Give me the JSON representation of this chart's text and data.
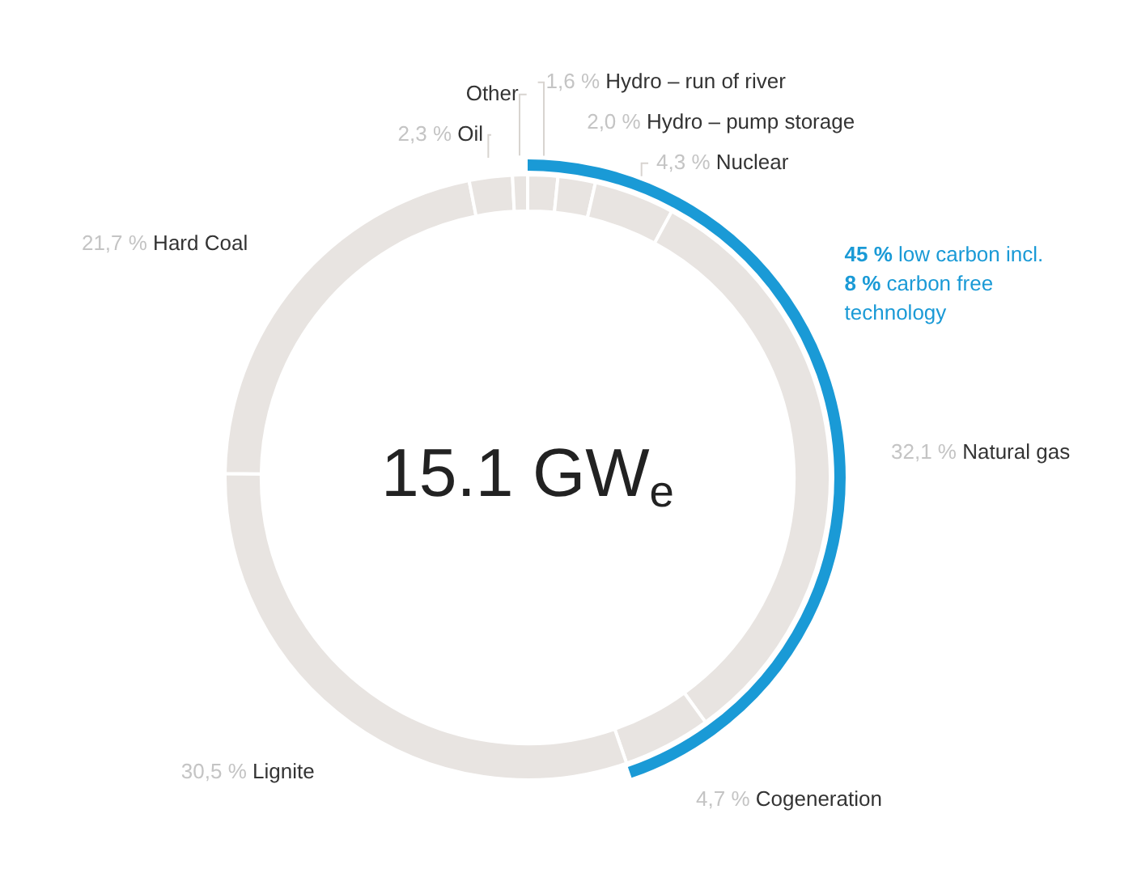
{
  "chart_data": {
    "type": "donut",
    "title": "15.1 GW$_{e}$",
    "categories": [
      "Hydro – run of river",
      "Hydro – pump storage",
      "Nuclear",
      "Natural gas",
      "Cogeneration",
      "Lignite",
      "Hard Coal",
      "Oil",
      "Other"
    ],
    "values": [
      1.6,
      2.0,
      4.3,
      32.1,
      4.7,
      30.5,
      21.7,
      2.3,
      0.8
    ],
    "value_labels": [
      "1,6 %",
      "2,0 %",
      "4,3 %",
      "32,1 %",
      "4,7 %",
      "30,5 %",
      "21,7 %",
      "2,3 %",
      null
    ],
    "colors": [
      "#e8e4e1",
      "#e8e4e1",
      "#e8e4e1",
      "#e8e4e1",
      "#e8e4e1",
      "#e8e4e1",
      "#e8e4e1",
      "#e8e4e1",
      "#e8e4e1"
    ],
    "annotations": [
      "45 % low carbon incl. 8 % carbon free technology"
    ],
    "legend": false
  }
}
